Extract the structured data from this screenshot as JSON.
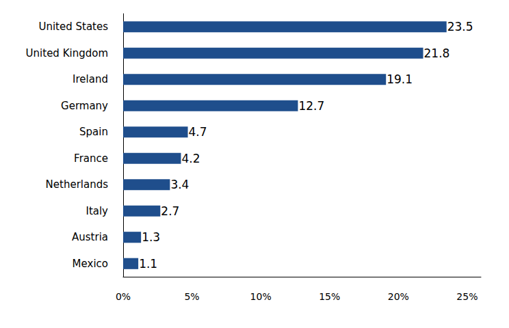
{
  "chart_data": {
    "type": "bar",
    "orientation": "horizontal",
    "data_labels": true,
    "grid": false,
    "color": "#1f4e8c",
    "categories": [
      "United States",
      "United Kingdom",
      "Ireland",
      "Germany",
      "Spain",
      "France",
      "Netherlands",
      "Italy",
      "Austria",
      "Mexico"
    ],
    "values": [
      23.5,
      21.8,
      19.1,
      12.7,
      4.7,
      4.2,
      3.4,
      2.7,
      1.3,
      1.1
    ],
    "xlim": [
      0,
      26
    ],
    "xticks": [
      {
        "value": 0,
        "label": "0%"
      },
      {
        "value": 5,
        "label": "5%"
      },
      {
        "value": 10,
        "label": "10%"
      },
      {
        "value": 15,
        "label": "15%"
      },
      {
        "value": 20,
        "label": "20%"
      },
      {
        "value": 25,
        "label": "25%"
      }
    ]
  }
}
